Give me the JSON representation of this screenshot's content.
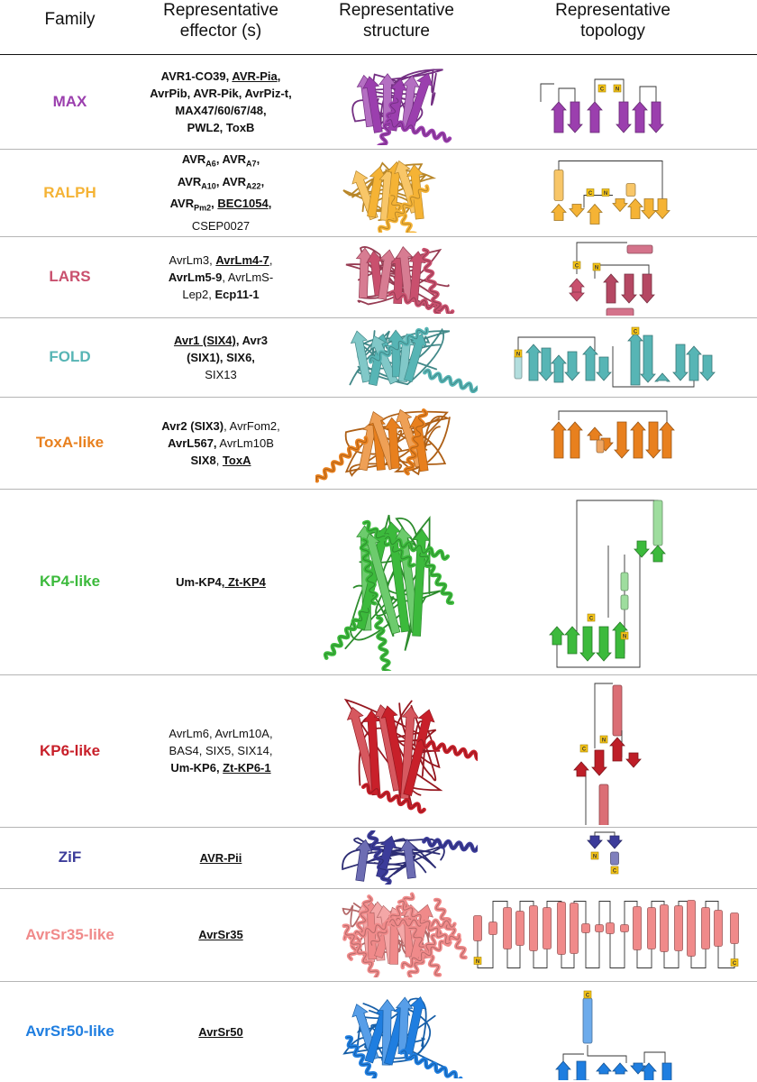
{
  "header": {
    "family": "Family",
    "effector": [
      "Representative",
      "effector (s)"
    ],
    "structure": [
      "Representative",
      "structure"
    ],
    "topology": [
      "Representative",
      "topology"
    ]
  },
  "icons": {
    "n_label": "N",
    "c_label": "C"
  },
  "rows": [
    {
      "family": "MAX",
      "color": "#9b3fae",
      "effectors": [
        {
          "segs": [
            {
              "t": "AVR1-CO39, ",
              "b": true
            },
            {
              "t": "AVR-Pia",
              "b": true,
              "u": true
            },
            {
              "t": ",",
              "b": true
            }
          ]
        },
        {
          "segs": [
            {
              "t": "AvrPib, AVR-Pik, AvrPiz-t,",
              "b": true
            }
          ]
        },
        {
          "segs": [
            {
              "t": "MAX47/60/67/48,",
              "b": true
            }
          ]
        },
        {
          "segs": [
            {
              "t": "PWL2, ToxB",
              "b": true
            }
          ]
        }
      ]
    },
    {
      "family": "RALPH",
      "color": "#f5b335",
      "effectors": [
        {
          "segs": [
            {
              "t": "AVR",
              "b": true
            },
            {
              "t": "A6",
              "b": true,
              "sub": true
            },
            {
              "t": ", AVR",
              "b": true
            },
            {
              "t": "A7",
              "b": true,
              "sub": true
            },
            {
              "t": ",",
              "b": true
            }
          ]
        },
        {
          "segs": [
            {
              "t": "AVR",
              "b": true
            },
            {
              "t": "A10",
              "b": true,
              "sub": true
            },
            {
              "t": ", AVR",
              "b": true
            },
            {
              "t": "A22",
              "b": true,
              "sub": true
            },
            {
              "t": ",",
              "b": true
            }
          ]
        },
        {
          "segs": [
            {
              "t": "AVR",
              "b": true
            },
            {
              "t": "Pm2",
              "b": true,
              "sub": true
            },
            {
              "t": ", ",
              "b": true
            },
            {
              "t": "BEC1054",
              "b": true,
              "u": true
            },
            {
              "t": ",",
              "b": true
            }
          ]
        },
        {
          "segs": [
            {
              "t": "CSEP0027"
            }
          ]
        }
      ]
    },
    {
      "family": "LARS",
      "color": "#c9506e",
      "effectors": [
        {
          "segs": [
            {
              "t": "AvrLm3, "
            },
            {
              "t": "AvrLm4-7",
              "b": true,
              "u": true
            },
            {
              "t": ","
            }
          ]
        },
        {
          "segs": [
            {
              "t": "AvrLm5-9",
              "b": true
            },
            {
              "t": ", AvrLmS-"
            }
          ]
        },
        {
          "segs": [
            {
              "t": "Lep2, "
            },
            {
              "t": "Ecp11-1",
              "b": true
            }
          ]
        }
      ]
    },
    {
      "family": "FOLD",
      "color": "#57b5b5",
      "effectors": [
        {
          "segs": [
            {
              "t": "Avr1 (SIX4)",
              "b": true,
              "u": true
            },
            {
              "t": ", Avr3",
              "b": true
            }
          ]
        },
        {
          "segs": [
            {
              "t": "(SIX1), SIX6,",
              "b": true
            }
          ]
        },
        {
          "segs": [
            {
              "t": "SIX13"
            }
          ]
        }
      ]
    },
    {
      "family": "ToxA-like",
      "color": "#e8801e",
      "effectors": [
        {
          "segs": [
            {
              "t": "Avr2 (SIX3)",
              "b": true
            },
            {
              "t": ", AvrFom2,"
            }
          ]
        },
        {
          "segs": [
            {
              "t": "AvrL567,",
              "b": true
            },
            {
              "t": " AvrLm10B"
            }
          ]
        },
        {
          "segs": [
            {
              "t": "SIX8",
              "b": true
            },
            {
              "t": ", "
            },
            {
              "t": "ToxA",
              "b": true,
              "u": true
            }
          ]
        }
      ]
    },
    {
      "family": "KP4-like",
      "color": "#3cba3c",
      "effectors": [
        {
          "segs": [
            {
              "t": "Um-KP4,",
              "b": true
            },
            {
              "t": " Zt-KP4",
              "b": true,
              "u": true
            }
          ]
        }
      ]
    },
    {
      "family": "KP6-like",
      "color": "#c8202a",
      "effectors": [
        {
          "segs": [
            {
              "t": "AvrLm6, AvrLm10A,"
            }
          ]
        },
        {
          "segs": [
            {
              "t": "BAS4, SIX5, SIX14,"
            }
          ]
        },
        {
          "segs": [
            {
              "t": "Um-KP6, ",
              "b": true
            },
            {
              "t": "Zt-KP6-1",
              "b": true,
              "u": true
            }
          ]
        }
      ]
    },
    {
      "family": "ZiF",
      "color": "#3c3c9a",
      "effectors": [
        {
          "segs": [
            {
              "t": "AVR-Pii",
              "b": true,
              "u": true
            }
          ]
        }
      ]
    },
    {
      "family": "AvrSr35-like",
      "color": "#f08a8a",
      "effectors": [
        {
          "segs": [
            {
              "t": "AvrSr35",
              "b": true,
              "u": true
            }
          ]
        }
      ]
    },
    {
      "family": "AvrSr50-like",
      "color": "#1f7ee0",
      "effectors": [
        {
          "segs": [
            {
              "t": "AvrSr50",
              "b": true,
              "u": true
            }
          ]
        }
      ]
    }
  ]
}
